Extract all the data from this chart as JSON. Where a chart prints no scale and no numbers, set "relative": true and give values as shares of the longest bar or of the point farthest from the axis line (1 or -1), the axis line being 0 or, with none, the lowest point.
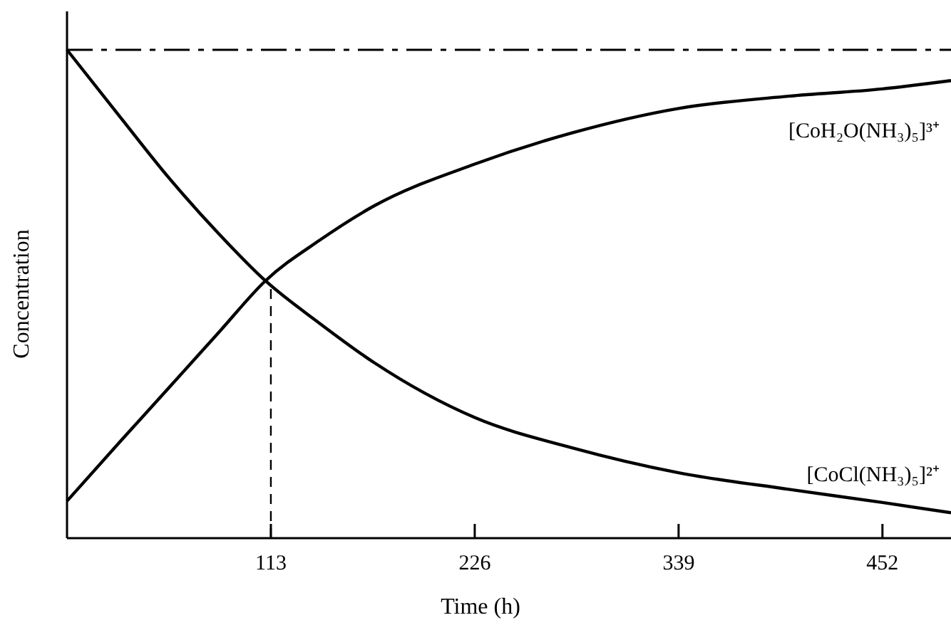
{
  "chart_data": {
    "type": "line",
    "xlabel": "Time (h)",
    "ylabel": "Concentration",
    "relative": true,
    "xlim": [
      0,
      490
    ],
    "xticks": [
      113,
      226,
      339,
      452
    ],
    "x": [
      0,
      30,
      56,
      85,
      110,
      140,
      170,
      226,
      280,
      339,
      400,
      452,
      490
    ],
    "series": [
      {
        "name": "[CoCl(NH₃)₅]²⁺",
        "color": "#000000",
        "values": [
          1,
          0.86,
          0.74,
          0.62,
          0.527,
          0.44,
          0.36,
          0.247,
          0.185,
          0.134,
          0.1,
          0.073,
          0.052
        ]
      },
      {
        "name": "[CoH₂O(NH₃)₅]³⁺",
        "color": "#000000",
        "values": [
          0.076,
          0.2,
          0.306,
          0.425,
          0.527,
          0.61,
          0.68,
          0.766,
          0.83,
          0.88,
          0.905,
          0.92,
          0.937
        ]
      }
    ],
    "ref_lines": [
      {
        "axis": "y",
        "value": 1,
        "line_style": "dashed"
      },
      {
        "axis": "x",
        "value": 113,
        "line_style": "dashed"
      }
    ],
    "grid": false,
    "line_style": "solid"
  }
}
